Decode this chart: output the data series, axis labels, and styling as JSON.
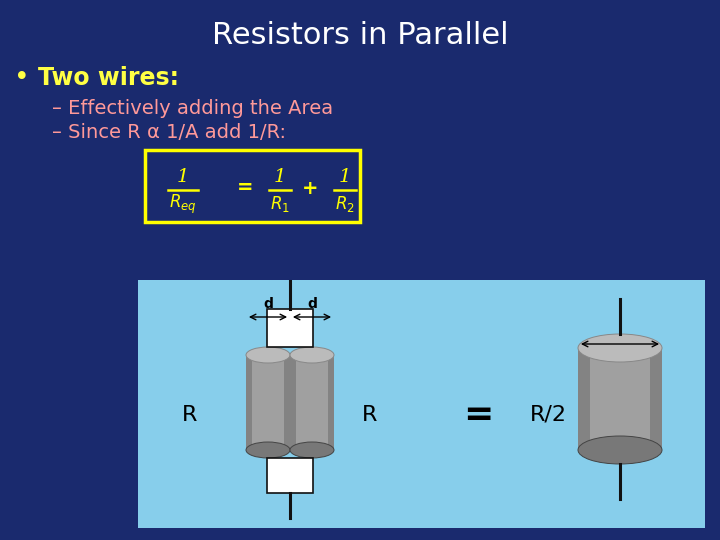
{
  "title": "Resistors in Parallel",
  "title_color": "#FFFFFF",
  "title_fontsize": 22,
  "bg_color": "#1a2a6e",
  "bullet_color": "#FFFF44",
  "bullet_fontsize": 17,
  "bullet_text": "Two wires:",
  "sub_color": "#FF9999",
  "sub_fontsize": 14,
  "sub1": "– Effectively adding the Area",
  "sub2": "– Since R α 1/A add 1/R:",
  "formula_box_color": "#FFFF00",
  "formula_text_color": "#FFFF00",
  "diagram_bg": "#87CEEB",
  "resistor_body_color": "#A0A0A0",
  "resistor_dark_color": "#787878",
  "resistor_top_color": "#BBBBBB",
  "wire_color": "#111111",
  "label_color": "#000000",
  "connector_color": "#FFFFFF"
}
